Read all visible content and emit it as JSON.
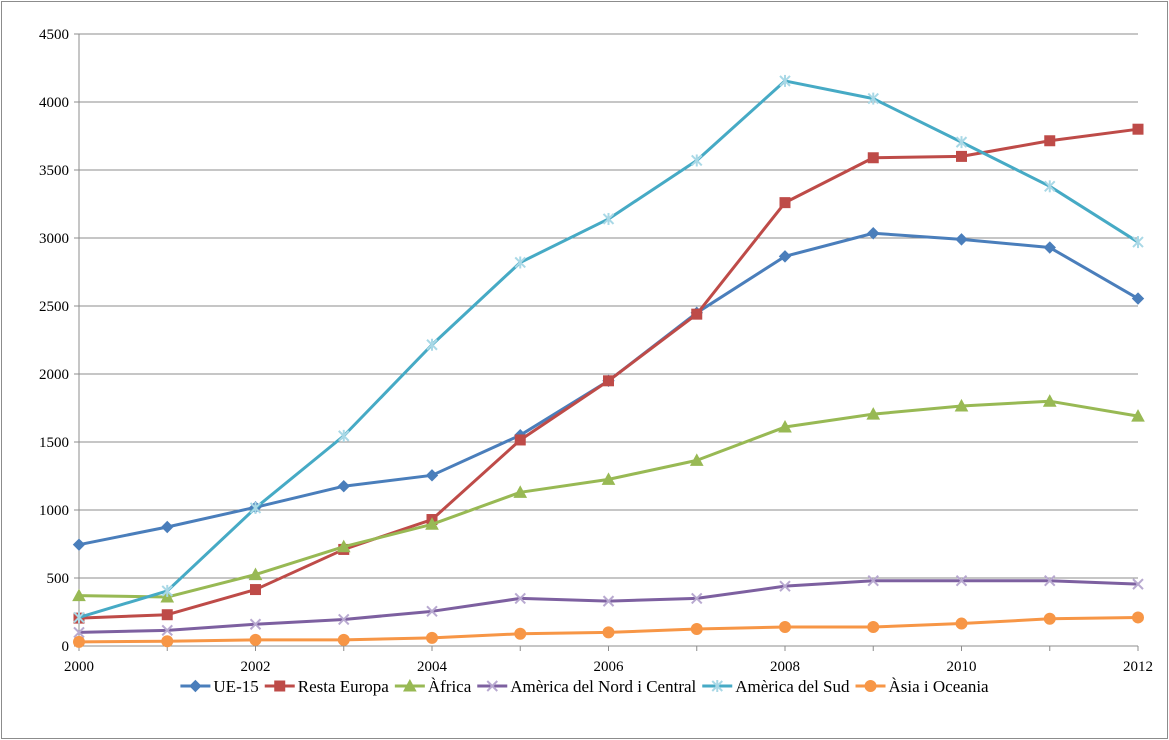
{
  "chart_data": {
    "type": "line",
    "title": "",
    "xlabel": "",
    "ylabel": "",
    "x": [
      2000,
      2001,
      2002,
      2003,
      2004,
      2005,
      2006,
      2007,
      2008,
      2009,
      2010,
      2011,
      2012
    ],
    "x_ticks": [
      2000,
      2002,
      2004,
      2006,
      2008,
      2010,
      2012
    ],
    "ylim": [
      0,
      4500
    ],
    "y_ticks": [
      0,
      500,
      1000,
      1500,
      2000,
      2500,
      3000,
      3500,
      4000,
      4500
    ],
    "grid": "horizontal",
    "legend_position": "bottom",
    "series": [
      {
        "name": "UE-15",
        "color": "#4a7ebb",
        "marker": "diamond",
        "values": [
          745,
          875,
          1020,
          1175,
          1255,
          1550,
          1950,
          2450,
          2865,
          3035,
          2990,
          2930,
          2555
        ]
      },
      {
        "name": "Resta Europa",
        "color": "#be4b48",
        "marker": "square",
        "values": [
          205,
          230,
          415,
          710,
          930,
          1515,
          1950,
          2440,
          3260,
          3590,
          3600,
          3715,
          3800
        ]
      },
      {
        "name": "Àfrica",
        "color": "#98b954",
        "marker": "triangle",
        "values": [
          370,
          360,
          525,
          730,
          895,
          1130,
          1225,
          1365,
          1610,
          1705,
          1765,
          1800,
          1690
        ]
      },
      {
        "name": "Amèrica del Nord i Central",
        "color": "#7d60a0",
        "marker": "x",
        "values": [
          100,
          115,
          160,
          195,
          255,
          350,
          330,
          350,
          440,
          480,
          480,
          480,
          455
        ]
      },
      {
        "name": "Amèrica del Sud",
        "color": "#46aac5",
        "marker": "star",
        "values": [
          210,
          405,
          1015,
          1545,
          2215,
          2820,
          3140,
          3570,
          4155,
          4025,
          3705,
          3380,
          2970
        ]
      },
      {
        "name": "Àsia i Oceania",
        "color": "#f79646",
        "marker": "circle",
        "values": [
          30,
          35,
          45,
          45,
          60,
          90,
          100,
          125,
          140,
          140,
          165,
          200,
          210
        ]
      }
    ]
  }
}
